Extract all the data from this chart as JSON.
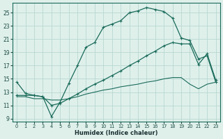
{
  "bg_color": "#dff0eb",
  "grid_color": "#b8d8d0",
  "line_color": "#1a6b5a",
  "xlabel": "Humidex (Indice chaleur)",
  "xlim": [
    -0.5,
    23.5
  ],
  "ylim": [
    8.5,
    26.5
  ],
  "xticks": [
    0,
    1,
    2,
    3,
    4,
    5,
    6,
    7,
    8,
    9,
    10,
    11,
    12,
    13,
    14,
    15,
    16,
    17,
    18,
    19,
    20,
    21,
    22,
    23
  ],
  "yticks": [
    9,
    11,
    13,
    15,
    17,
    19,
    21,
    23,
    25
  ],
  "series1_x": [
    0,
    1,
    2,
    3,
    4,
    5,
    6,
    7,
    8,
    9,
    10,
    11,
    12,
    13,
    14,
    15,
    16,
    17,
    18,
    19,
    20,
    21,
    22,
    23
  ],
  "series1_y": [
    14.5,
    12.8,
    12.5,
    12.3,
    9.3,
    11.5,
    14.3,
    17.0,
    19.8,
    20.5,
    22.8,
    23.3,
    23.8,
    25.0,
    25.3,
    25.8,
    25.5,
    25.2,
    24.2,
    21.2,
    20.8,
    18.0,
    18.5,
    14.5
  ],
  "series2_x": [
    0,
    1,
    2,
    3,
    4,
    5,
    6,
    7,
    8,
    9,
    10,
    11,
    12,
    13,
    14,
    15,
    16,
    17,
    18,
    19,
    20,
    21,
    22,
    23
  ],
  "series2_y": [
    12.5,
    12.5,
    12.5,
    12.3,
    11.0,
    11.3,
    12.0,
    12.7,
    13.5,
    14.2,
    14.8,
    15.5,
    16.2,
    17.0,
    17.7,
    18.5,
    19.2,
    20.0,
    20.5,
    20.3,
    20.3,
    17.2,
    18.8,
    14.8
  ],
  "series3_x": [
    0,
    1,
    2,
    3,
    4,
    5,
    6,
    7,
    8,
    9,
    10,
    11,
    12,
    13,
    14,
    15,
    16,
    17,
    18,
    19,
    20,
    21,
    22,
    23
  ],
  "series3_y": [
    12.3,
    12.3,
    12.0,
    12.0,
    11.8,
    11.8,
    12.0,
    12.3,
    12.7,
    13.0,
    13.3,
    13.5,
    13.8,
    14.0,
    14.2,
    14.5,
    14.7,
    15.0,
    15.2,
    15.2,
    14.2,
    13.5,
    14.2,
    14.5
  ]
}
